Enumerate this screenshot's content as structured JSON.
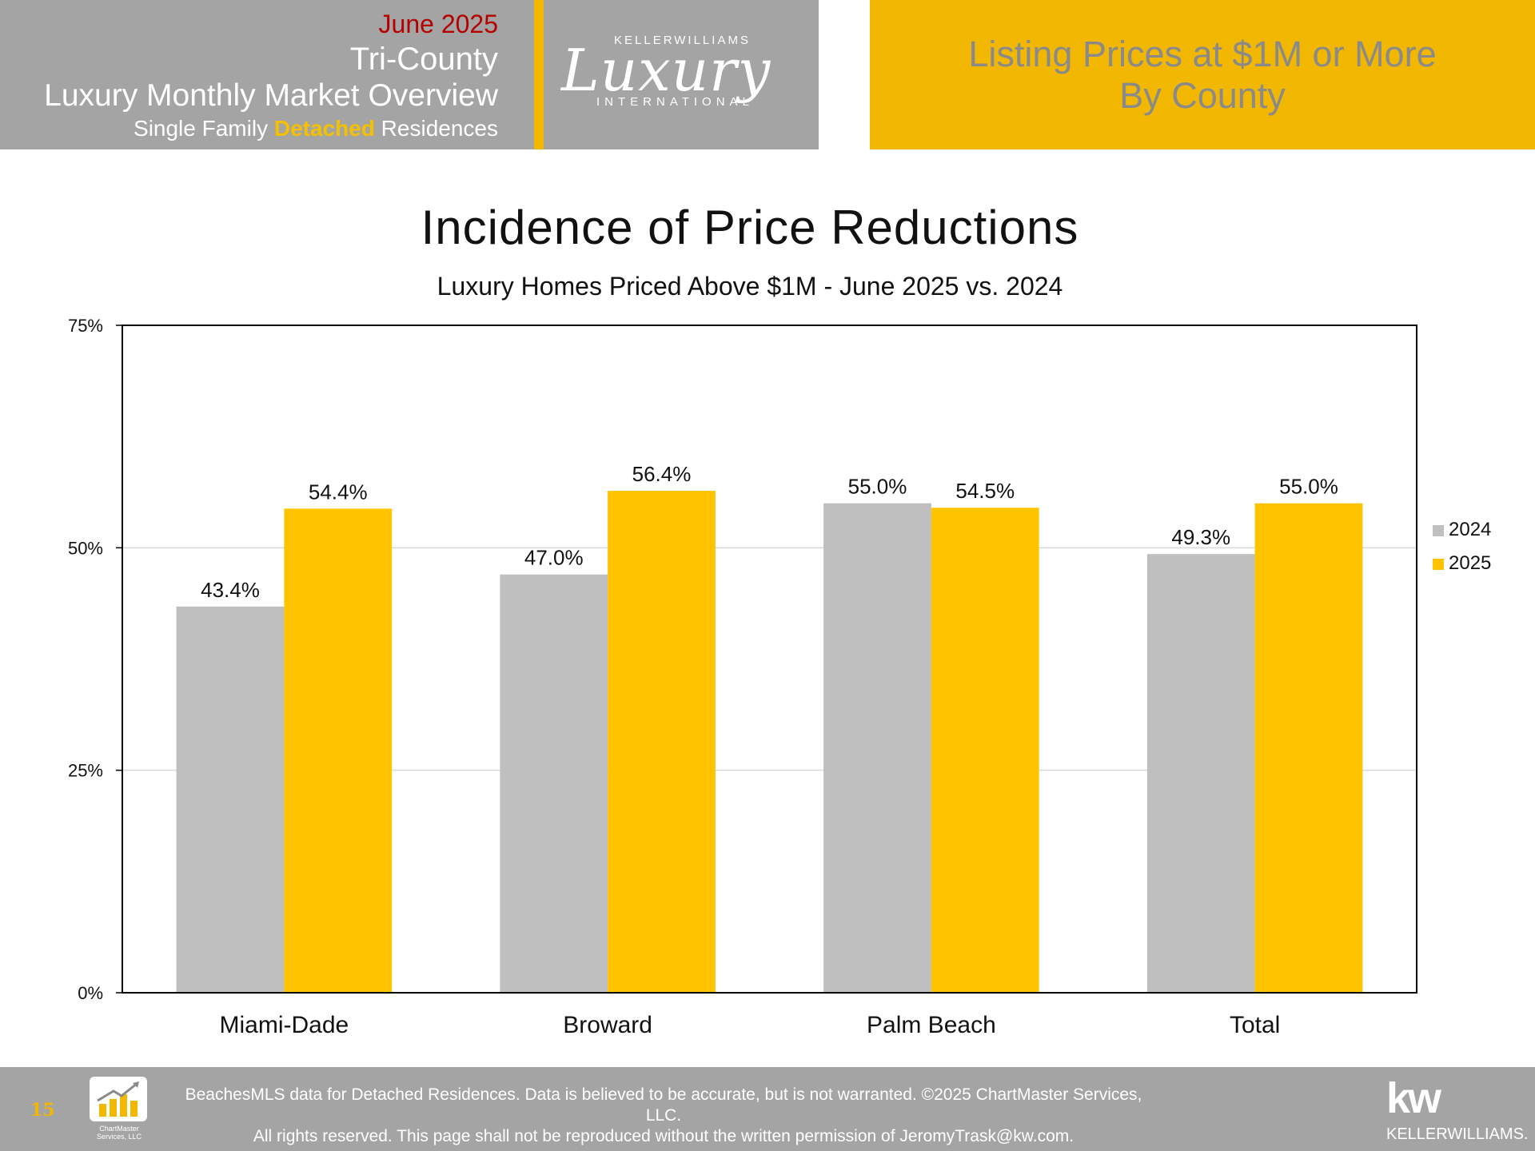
{
  "header": {
    "date": "June 2025",
    "line2": "Tri-County",
    "line3": "Luxury Monthly Market Overview",
    "line4_prefix": "Single Family ",
    "line4_highlight": "Detached",
    "line4_suffix": " Residences",
    "logo_brand": "KELLERWILLIAMS",
    "logo_script": "Luxury",
    "logo_sub": "INTERNATIONAL",
    "right_line1": "Listing Prices at $1M or More",
    "right_line2": "By County"
  },
  "chart_data": {
    "type": "bar",
    "title": "Incidence of Price Reductions",
    "subtitle": "Luxury Homes Priced Above $1M - June 2025 vs. 2024",
    "categories": [
      "Miami-Dade",
      "Broward",
      "Palm Beach",
      "Total"
    ],
    "series": [
      {
        "name": "2024",
        "color": "#bfbfbf",
        "values": [
          43.4,
          47.0,
          55.0,
          49.3
        ],
        "labels": [
          "43.4%",
          "47.0%",
          "55.0%",
          "49.3%"
        ]
      },
      {
        "name": "2025",
        "color": "#ffc300",
        "values": [
          54.4,
          56.4,
          54.5,
          55.0
        ],
        "labels": [
          "54.4%",
          "56.4%",
          "54.5%",
          "55.0%"
        ]
      }
    ],
    "ylim": [
      0,
      75
    ],
    "yticks": [
      0,
      25,
      50,
      75
    ],
    "ytick_labels": [
      "0%",
      "25%",
      "50%",
      "75%"
    ],
    "grid": true,
    "legend_position": "right"
  },
  "footer": {
    "page_number": "15",
    "chartmaster_text": "ChartMaster Services, LLC",
    "disclaimer_line1": "BeachesMLS data for Detached Residences.  Data is believed to be accurate, but is not warranted.   ©2025  ChartMaster Services, LLC.",
    "disclaimer_line2": "All rights reserved. This page shall not be reproduced without the written permission of JeromyTrask@kw.com.",
    "kw_mark": "kw",
    "kw_word": "KELLERWILLIAMS."
  }
}
